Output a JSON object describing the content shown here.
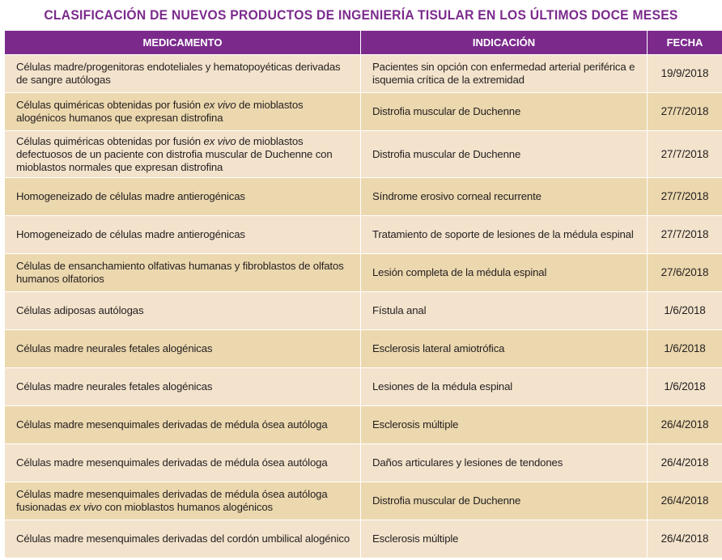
{
  "title": "CLASIFICACIÓN DE NUEVOS PRODUCTOS DE INGENIERÍA TISULAR EN LOS ÚLTIMOS DOCE MESES",
  "headers": {
    "medicamento": "MEDICAMENTO",
    "indicacion": "INDICACIÓN",
    "fecha": "FECHA"
  },
  "rows": [
    {
      "medicamento": [
        "Células madre/progenitoras endoteliales y hematopoyéticas derivadas de sangre autólogas"
      ],
      "indicacion": "Pacientes sin opción con enfermedad arterial periférica e isquemia crítica de la extremidad",
      "fecha": "19/9/2018"
    },
    {
      "medicamento": [
        "Células quiméricas obtenidas por fusión ",
        "ex vivo",
        " de mioblastos alogénicos humanos que expresan distrofina"
      ],
      "indicacion": "Distrofia muscular de Duchenne",
      "fecha": "27/7/2018"
    },
    {
      "medicamento": [
        "Células quiméricas obtenidas por fusión ",
        "ex vivo",
        " de mioblastos defectuosos de un paciente con distrofia muscular de Duchenne con mioblastos normales que expresan distrofina"
      ],
      "indicacion": "Distrofia muscular de Duchenne",
      "fecha": "27/7/2018"
    },
    {
      "medicamento": [
        "Homogeneizado de células madre antierogénicas"
      ],
      "indicacion": "Síndrome erosivo corneal recurrente",
      "fecha": "27/7/2018"
    },
    {
      "medicamento": [
        "Homogeneizado de células madre antierogénicas"
      ],
      "indicacion": "Tratamiento de soporte de lesiones de la médula espinal",
      "fecha": "27/7/2018"
    },
    {
      "medicamento": [
        "Células de ensanchamiento olfativas humanas y fibroblastos de olfatos humanos olfatorios"
      ],
      "indicacion": "Lesión completa de la médula espinal",
      "fecha": "27/6/2018"
    },
    {
      "medicamento": [
        "Células adiposas autólogas"
      ],
      "indicacion": "Fístula anal",
      "fecha": "1/6/2018"
    },
    {
      "medicamento": [
        "Células madre neurales fetales alogénicas"
      ],
      "indicacion": "Esclerosis lateral amiotrófica",
      "fecha": "1/6/2018"
    },
    {
      "medicamento": [
        "Células madre neurales fetales alogénicas"
      ],
      "indicacion": "Lesiones de la médula espinal",
      "fecha": "1/6/2018"
    },
    {
      "medicamento": [
        "Células madre mesenquimales derivadas de médula ósea autóloga"
      ],
      "indicacion": "Esclerosis múltiple",
      "fecha": "26/4/2018"
    },
    {
      "medicamento": [
        "Células madre mesenquimales derivadas de médula ósea autóloga"
      ],
      "indicacion": "Daños articulares y lesiones de tendones",
      "fecha": "26/4/2018"
    },
    {
      "medicamento": [
        "Células madre mesenquimales derivadas de médula ósea autóloga fusionadas ",
        "ex vivo",
        " con mioblastos humanos alogénicos"
      ],
      "indicacion": "Distrofia muscular de Duchenne",
      "fecha": "26/4/2018"
    },
    {
      "medicamento": [
        "Células madre mesenquimales derivadas del cordón umbilical alogénico"
      ],
      "indicacion": "Esclerosis múltiple",
      "fecha": "26/4/2018"
    }
  ]
}
